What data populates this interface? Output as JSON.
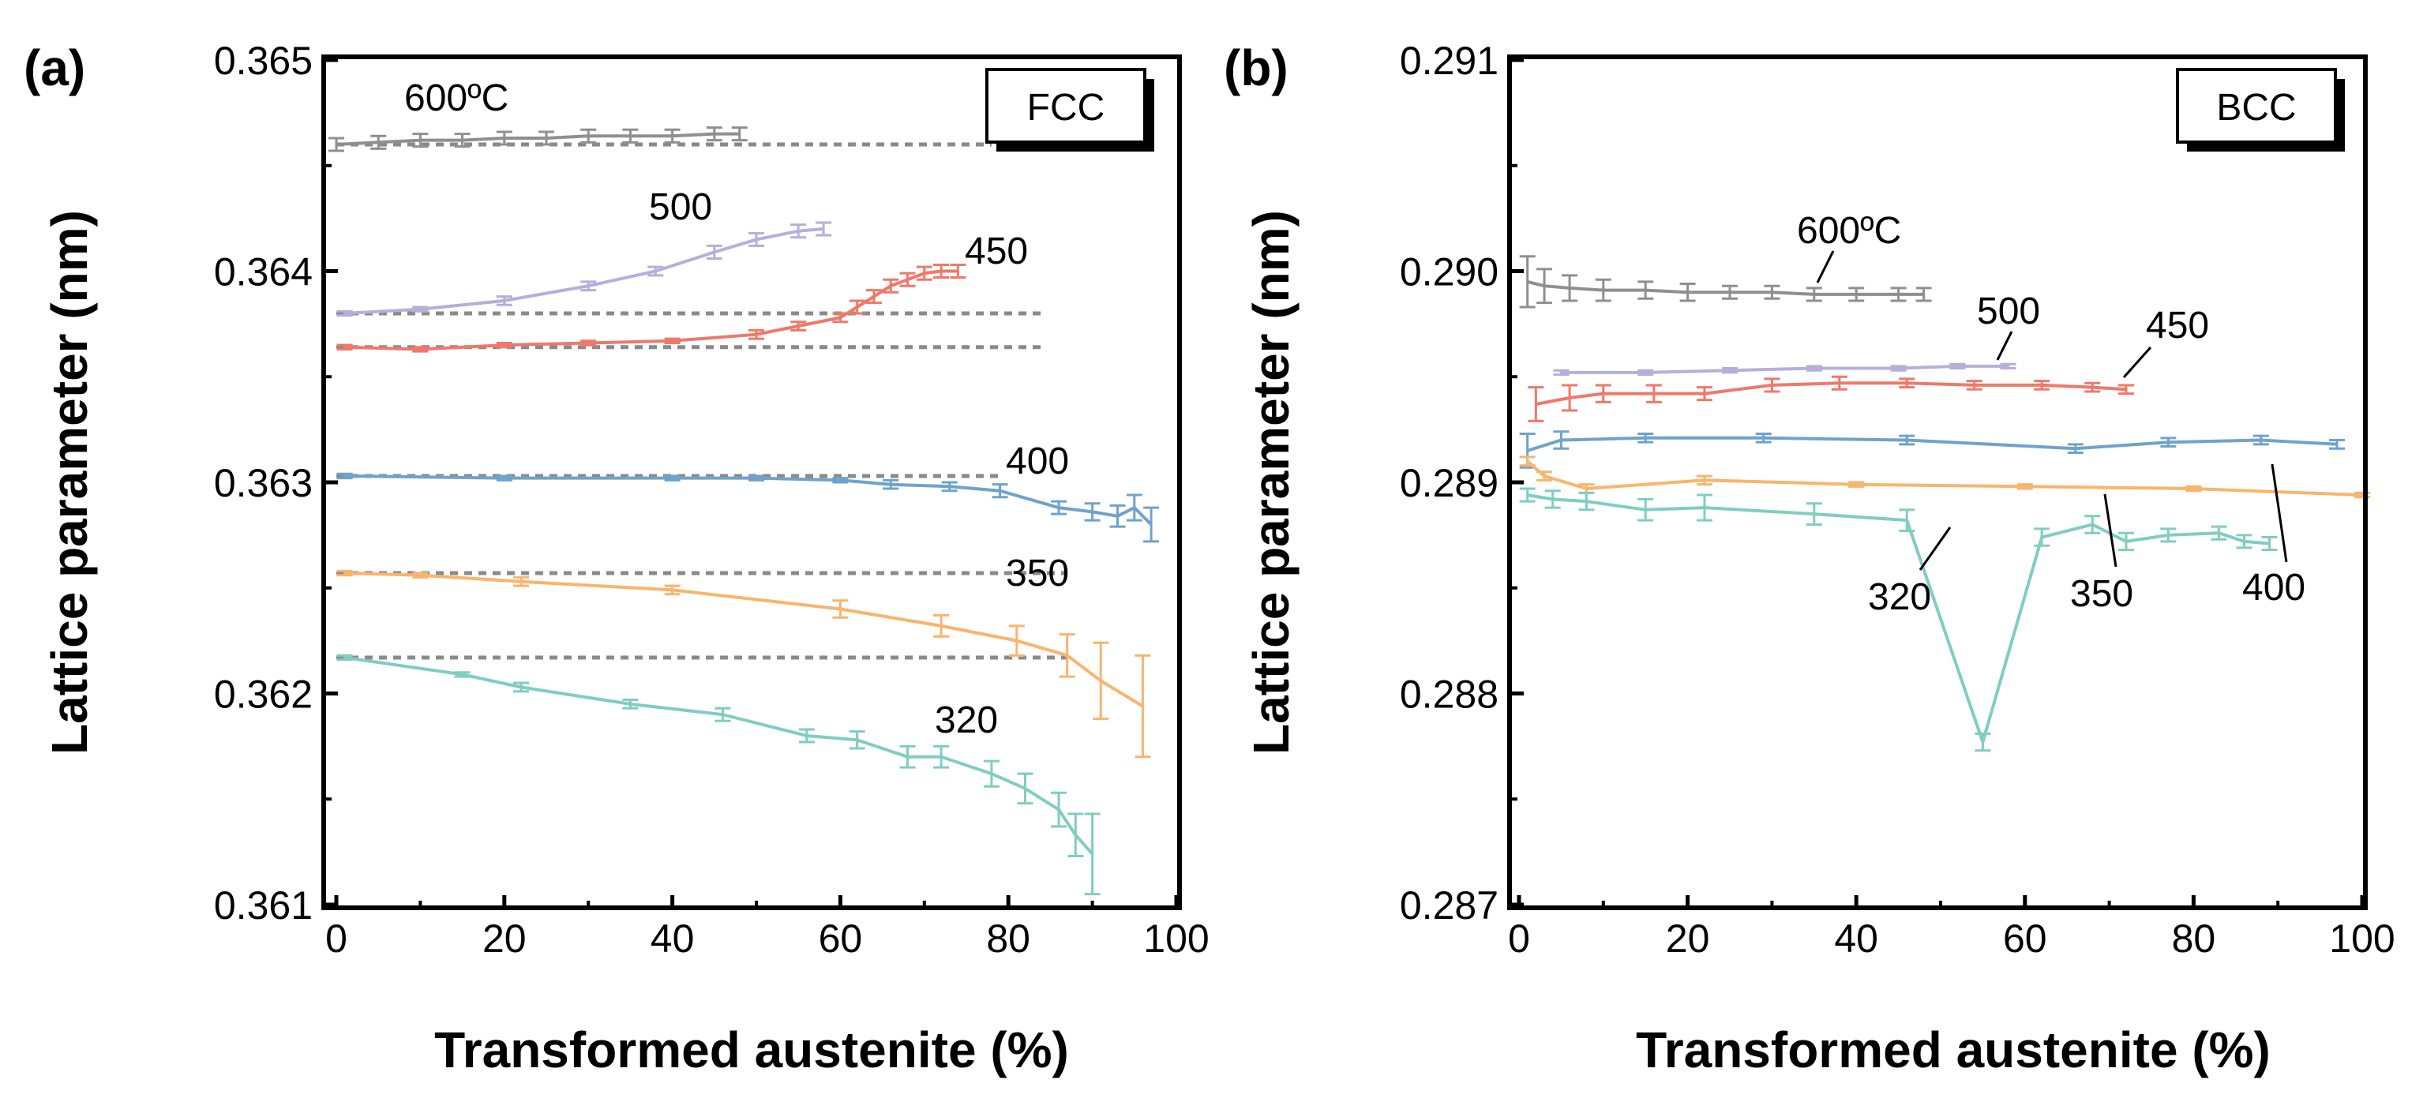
{
  "chart_data": [
    {
      "type": "line",
      "panel_label": "(a)",
      "box_label": "FCC",
      "xlabel": "Transformed austenite (%)",
      "ylabel": "Lattice parameter (nm)",
      "xlim": [
        0,
        100
      ],
      "ylim": [
        0.361,
        0.365
      ],
      "xticks": [
        "0",
        "20",
        "40",
        "60",
        "80",
        "100"
      ],
      "xtick_values": [
        0,
        20,
        40,
        60,
        80,
        100
      ],
      "yticks": [
        "0.361",
        "0.362",
        "0.363",
        "0.364",
        "0.365"
      ],
      "ytick_values": [
        0.361,
        0.362,
        0.363,
        0.364,
        0.365
      ],
      "series": [
        {
          "name": "600ºC",
          "label": "600ºC",
          "color": "#8f8f8f",
          "ref": 0.3646,
          "x": [
            0,
            5,
            10,
            15,
            20,
            25,
            30,
            35,
            40,
            45,
            48
          ],
          "y": [
            0.3646,
            0.36461,
            0.36462,
            0.36462,
            0.36463,
            0.36463,
            0.36464,
            0.36464,
            0.36464,
            0.36465,
            0.36465
          ],
          "err": [
            3e-05,
            3e-05,
            3e-05,
            3e-05,
            3e-05,
            3e-05,
            3e-05,
            3e-05,
            3e-05,
            3e-05,
            3e-05
          ],
          "ref_end": 78
        },
        {
          "name": "500",
          "label": "500",
          "color": "#b6aedb",
          "ref": 0.3638,
          "x": [
            1,
            10,
            20,
            30,
            38,
            45,
            50,
            55,
            58
          ],
          "y": [
            0.3638,
            0.36382,
            0.36386,
            0.36393,
            0.364,
            0.36409,
            0.36415,
            0.36419,
            0.3642
          ],
          "err": [
            1e-05,
            1e-05,
            2e-05,
            2e-05,
            2e-05,
            3e-05,
            3e-05,
            3e-05,
            3e-05
          ],
          "ref_end": 84
        },
        {
          "name": "450",
          "label": "450",
          "color": "#f0786a",
          "ref": 0.36364,
          "x": [
            1,
            10,
            20,
            30,
            40,
            50,
            55,
            60,
            62,
            64,
            66,
            68,
            70,
            72,
            74
          ],
          "y": [
            0.36364,
            0.36363,
            0.36365,
            0.36366,
            0.36367,
            0.3637,
            0.36374,
            0.36378,
            0.36383,
            0.36388,
            0.36393,
            0.36396,
            0.36399,
            0.364,
            0.364
          ],
          "err": [
            1e-05,
            1e-05,
            1e-05,
            1e-05,
            1e-05,
            2e-05,
            2e-05,
            2e-05,
            3e-05,
            3e-05,
            3e-05,
            3e-05,
            3e-05,
            3e-05,
            3e-05
          ],
          "ref_end": 84
        },
        {
          "name": "400",
          "label": "400",
          "color": "#6fa3cb",
          "ref": 0.36303,
          "x": [
            1,
            20,
            40,
            50,
            60,
            66,
            73,
            79,
            86,
            90,
            93,
            95,
            97
          ],
          "y": [
            0.36303,
            0.36302,
            0.36302,
            0.36302,
            0.36301,
            0.36299,
            0.36298,
            0.36296,
            0.36288,
            0.36286,
            0.36284,
            0.36288,
            0.3628
          ],
          "err": [
            1e-05,
            1e-05,
            1e-05,
            1e-05,
            1e-05,
            2e-05,
            2e-05,
            3e-05,
            3e-05,
            4e-05,
            5e-05,
            6e-05,
            8e-05
          ],
          "ref_end": 79
        },
        {
          "name": "350",
          "label": "350",
          "color": "#f9b46d",
          "ref": 0.36257,
          "x": [
            1,
            10,
            22,
            40,
            60,
            72,
            81,
            87,
            91,
            96
          ],
          "y": [
            0.36257,
            0.36256,
            0.36253,
            0.36249,
            0.3624,
            0.36232,
            0.36225,
            0.36218,
            0.36206,
            0.36194
          ],
          "err": [
            1e-05,
            1e-05,
            2e-05,
            2e-05,
            4e-05,
            5e-05,
            7e-05,
            0.0001,
            0.00018,
            0.00024
          ],
          "ref_end": 87
        },
        {
          "name": "320",
          "label": "320",
          "color": "#80cdc1",
          "ref": 0.36217,
          "x": [
            1,
            15,
            22,
            35,
            46,
            56,
            62,
            68,
            72,
            78,
            82,
            86,
            88,
            90
          ],
          "y": [
            0.36217,
            0.36209,
            0.36203,
            0.36195,
            0.3619,
            0.3618,
            0.36178,
            0.3617,
            0.3617,
            0.36162,
            0.36155,
            0.36145,
            0.36133,
            0.36124
          ],
          "err": [
            1e-05,
            1e-05,
            2e-05,
            2e-05,
            3e-05,
            3e-05,
            4e-05,
            5e-05,
            5e-05,
            6e-05,
            7e-05,
            8e-05,
            0.0001,
            0.00019
          ],
          "ref_end": 87
        }
      ]
    },
    {
      "type": "line",
      "panel_label": "(b)",
      "box_label": "BCC",
      "xlabel": "Transformed austenite (%)",
      "ylabel": "Lattice parameter (nm)",
      "xlim": [
        0,
        100
      ],
      "ylim": [
        0.287,
        0.291
      ],
      "xticks": [
        "0",
        "20",
        "40",
        "60",
        "80",
        "100"
      ],
      "xtick_values": [
        0,
        20,
        40,
        60,
        80,
        100
      ],
      "yticks": [
        "0.287",
        "0.288",
        "0.289",
        "0.290",
        "0.291"
      ],
      "ytick_values": [
        0.287,
        0.288,
        0.289,
        0.29,
        0.291
      ],
      "series": [
        {
          "name": "600ºC",
          "label": "600ºC",
          "color": "#8f8f8f",
          "x": [
            1,
            3,
            6,
            10,
            15,
            20,
            25,
            30,
            35,
            40,
            45,
            48
          ],
          "y": [
            0.28995,
            0.28993,
            0.28992,
            0.28991,
            0.28991,
            0.2899,
            0.2899,
            0.2899,
            0.28989,
            0.28989,
            0.28989,
            0.28989
          ],
          "err": [
            0.00012,
            8e-05,
            6e-05,
            5e-05,
            4e-05,
            4e-05,
            3e-05,
            3e-05,
            3e-05,
            3e-05,
            3e-05,
            3e-05
          ]
        },
        {
          "name": "500",
          "label": "500",
          "color": "#b6aedb",
          "x": [
            5,
            15,
            25,
            35,
            45,
            52,
            58
          ],
          "y": [
            0.28952,
            0.28952,
            0.28953,
            0.28954,
            0.28954,
            0.28955,
            0.28955
          ],
          "err": [
            1e-05,
            1e-05,
            1e-05,
            1e-05,
            1e-05,
            1e-05,
            1e-05
          ]
        },
        {
          "name": "450",
          "label": "450",
          "color": "#f0786a",
          "x": [
            2,
            6,
            10,
            16,
            22,
            30,
            38,
            46,
            54,
            62,
            68,
            72
          ],
          "y": [
            0.28937,
            0.2894,
            0.28942,
            0.28942,
            0.28942,
            0.28946,
            0.28947,
            0.28947,
            0.28946,
            0.28946,
            0.28945,
            0.28944
          ],
          "err": [
            8e-05,
            6e-05,
            4e-05,
            4e-05,
            3e-05,
            3e-05,
            3e-05,
            2e-05,
            2e-05,
            2e-05,
            2e-05,
            2e-05
          ]
        },
        {
          "name": "400",
          "label": "400",
          "color": "#6fa3cb",
          "x": [
            1,
            5,
            15,
            29,
            46,
            66,
            77,
            88,
            97
          ],
          "y": [
            0.28915,
            0.2892,
            0.28921,
            0.28921,
            0.2892,
            0.28916,
            0.28919,
            0.2892,
            0.28918
          ],
          "err": [
            8e-05,
            4e-05,
            2e-05,
            2e-05,
            2e-05,
            2e-05,
            2e-05,
            2e-05,
            2e-05
          ]
        },
        {
          "name": "350",
          "label": "350",
          "color": "#f9b46d",
          "x": [
            1,
            3,
            8,
            22,
            40,
            60,
            80,
            100
          ],
          "y": [
            0.2891,
            0.28903,
            0.28897,
            0.28901,
            0.28899,
            0.28898,
            0.28897,
            0.28894
          ],
          "err": [
            2e-05,
            2e-05,
            2e-05,
            2e-05,
            1e-05,
            1e-05,
            1e-05,
            1e-05
          ]
        },
        {
          "name": "320",
          "label": "320",
          "color": "#80cdc1",
          "x": [
            1,
            4,
            8,
            15,
            22,
            35,
            46,
            55,
            62,
            68,
            72,
            77,
            83,
            86,
            89
          ],
          "y": [
            0.28894,
            0.28892,
            0.28891,
            0.28887,
            0.28888,
            0.28885,
            0.28882,
            0.28777,
            0.28874,
            0.2888,
            0.28872,
            0.28875,
            0.28876,
            0.28872,
            0.28871
          ],
          "err": [
            3e-05,
            4e-05,
            4e-05,
            5e-05,
            6e-05,
            5e-05,
            5e-05,
            4e-05,
            4e-05,
            4e-05,
            4e-05,
            3e-05,
            3e-05,
            3e-05,
            3e-05
          ]
        }
      ]
    }
  ],
  "labels_a": {
    "t600": "600ºC",
    "t500": "500",
    "t450": "450",
    "t400": "400",
    "t350": "350",
    "t320": "320"
  },
  "labels_b": {
    "t600": "600ºC",
    "t500": "500",
    "t450": "450",
    "t400": "400",
    "t350": "350",
    "t320": "320"
  }
}
